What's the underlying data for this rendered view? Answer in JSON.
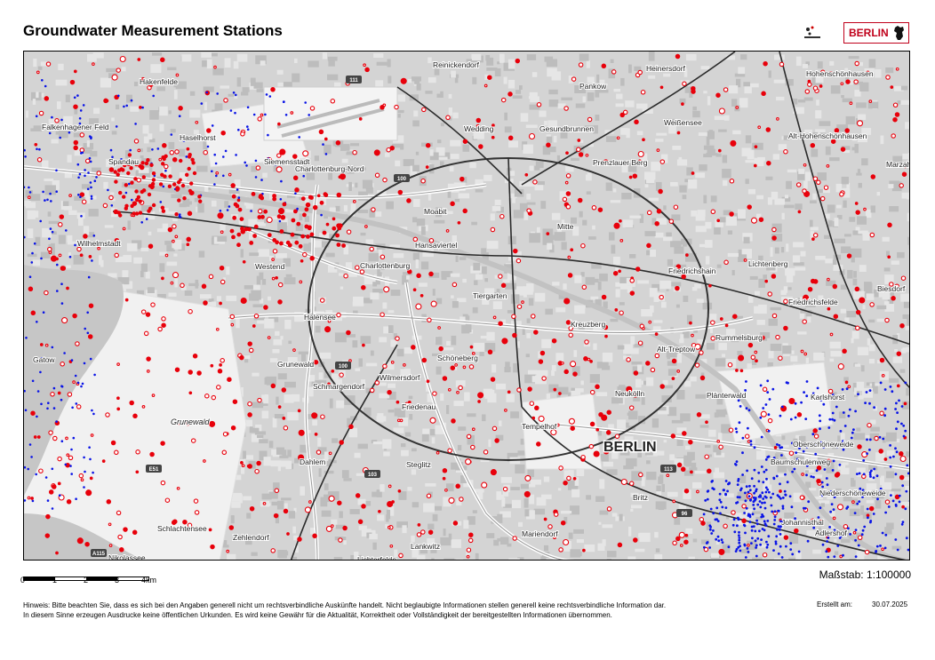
{
  "title": "Groundwater Measurement Stations",
  "logo_badge": "BERLIN",
  "scale": {
    "ticks": [
      "0",
      "1",
      "2",
      "3",
      "4km"
    ],
    "ratio_text": "Maßstab: 1:100000"
  },
  "disclaimer": {
    "line1": "Hinweis: Bitte beachten Sie, dass es sich bei den Angaben generell nicht um rechtsverbindliche Auskünfte handelt. Nicht beglaubigte Informationen stellen generell keine rechtsverbindliche Information dar.",
    "line2": "In diesem Sinne erzeugen Ausdrucke keine öffentlichen Urkunden. Es wird keine Gewähr für die Aktualität, Korrektheit oder Vollständigkeit der bereitgestellten Informationen übernommen."
  },
  "created_label": "Erstellt am:",
  "created_date": "30.07.2025",
  "map": {
    "city_label": "BERLIN",
    "district_labels": [
      "Reinickendorf",
      "Pankow",
      "Heinersdorf",
      "Weißensee",
      "Hohenschönhausen",
      "Alt-Hohenschönhausen",
      "Falkenhagener Feld",
      "Hakenfelde",
      "Spandau",
      "Haselhorst",
      "Siemensstadt",
      "Charlottenburg-Nord",
      "Wedding",
      "Gesundbrunnen",
      "Prenzlauer Berg",
      "Moabit",
      "Hansaviertel",
      "Mitte",
      "Tiergarten",
      "Charlottenburg",
      "Westend",
      "Wilhelmstadt",
      "Friedrichshain",
      "Lichtenberg",
      "Friedrichsfelde",
      "Kreuzberg",
      "Rummelsburg",
      "Alt-Treptow",
      "Karlshorst",
      "Schöneberg",
      "Wilmersdorf",
      "Halensee",
      "Grunewald",
      "Schmargendorf",
      "Friedenau",
      "Neukölln",
      "Plänterwald",
      "Tempelhof",
      "Oberschöneweide",
      "Baumschulenweg",
      "Niederschöneweide",
      "Johannisthal",
      "Adlershof",
      "Britz",
      "Mariendorf",
      "Steglitz",
      "Lankwitz",
      "Lichterfelde",
      "Zehlendorf",
      "Dahlem",
      "Schlachtensee",
      "Nikolassee",
      "Gatow",
      "Grunewald forest",
      "Marzahn",
      "Biesdorf"
    ],
    "road_shields": [
      "111",
      "100",
      "100",
      "113",
      "E51",
      "103",
      "A115",
      "96"
    ]
  },
  "colors": {
    "red_station": "#e8000b",
    "blue_station": "#0a14e6",
    "badge_red": "#c0001a"
  }
}
